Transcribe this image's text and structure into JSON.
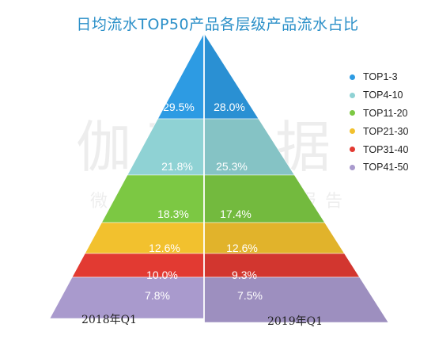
{
  "title": "日均流水TOP50产品各层级产品流水占比",
  "watermark": {
    "main": "伽马数据",
    "sub": "微信号：游戏产业报告"
  },
  "chart_data": {
    "type": "pyramid",
    "title": "日均流水TOP50产品各层级产品流水占比",
    "categories": [
      "TOP1-3",
      "TOP4-10",
      "TOP11-20",
      "TOP21-30",
      "TOP31-40",
      "TOP41-50"
    ],
    "colors": [
      "#2d9be3",
      "#8fd2d4",
      "#7cc843",
      "#f2c12e",
      "#e23a32",
      "#a99acd"
    ],
    "legend_position": "right",
    "series": [
      {
        "name": "2018年Q1",
        "values": [
          29.5,
          21.8,
          18.3,
          12.6,
          10.0,
          7.8
        ],
        "labels": [
          "29.5%",
          "21.8%",
          "18.3%",
          "12.6%",
          "10.0%",
          "7.8%"
        ]
      },
      {
        "name": "2019年Q1",
        "values": [
          28.0,
          25.3,
          17.4,
          12.6,
          9.3,
          7.5
        ],
        "labels": [
          "28.0%",
          "25.3%",
          "17.4%",
          "12.6%",
          "9.3%",
          "7.5%"
        ]
      }
    ]
  }
}
